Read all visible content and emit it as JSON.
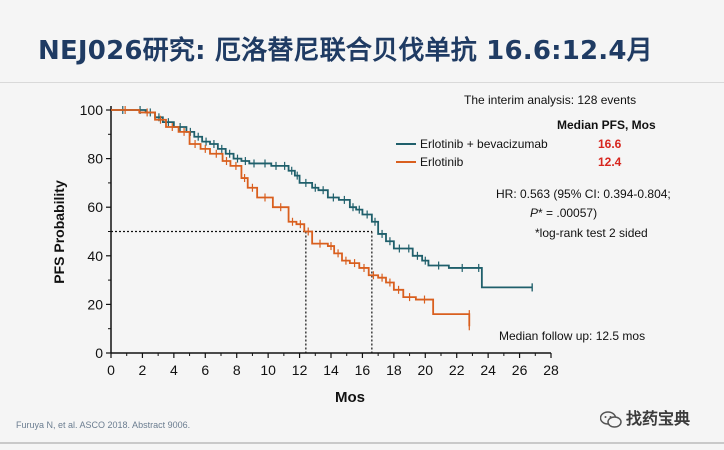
{
  "slide": {
    "title": "NEJ026研究: 厄洛替尼联合贝伐单抗 16.6:12.4月",
    "citation": "Furuya N, et al. ASCO 2018. Abstract 9006.",
    "watermark": "找药宝典",
    "watermark_icon": "wechat-icon"
  },
  "chart_data": {
    "type": "line",
    "subtype": "kaplan-meier",
    "title": "",
    "xlabel": "Mos",
    "ylabel": "PFS Probability",
    "xlim": [
      0,
      28
    ],
    "ylim": [
      0,
      100
    ],
    "xticks": [
      0,
      2,
      4,
      6,
      8,
      10,
      12,
      14,
      16,
      18,
      20,
      22,
      24,
      26,
      28
    ],
    "yticks": [
      0,
      20,
      40,
      60,
      80,
      100
    ],
    "grid": false,
    "legend_position": "top-right",
    "legend_header": "Median PFS, Mos",
    "series": [
      {
        "name": "Erlotinib + bevacizumab",
        "color": "#1f5f6b",
        "median_label": "16.6",
        "x": [
          0,
          1.5,
          2.2,
          2.8,
          3.3,
          4.0,
          4.8,
          5.3,
          5.8,
          6.3,
          6.8,
          7.3,
          7.8,
          8.3,
          8.8,
          9.4,
          10.2,
          10.8,
          11.3,
          11.7,
          12.0,
          12.8,
          13.2,
          13.8,
          14.5,
          15.2,
          15.6,
          16.0,
          16.6,
          17.0,
          17.5,
          18.0,
          18.7,
          19.2,
          19.8,
          20.2,
          21.5,
          23.2,
          23.6,
          26.8
        ],
        "y": [
          100,
          100,
          99,
          97,
          95,
          93,
          91,
          89,
          87,
          86,
          84,
          82,
          80,
          79,
          78,
          78,
          77,
          77,
          75,
          73,
          70,
          68,
          67,
          64,
          63,
          60,
          59,
          57,
          54,
          49,
          46,
          43,
          43,
          40,
          38,
          36,
          35,
          35,
          27,
          27
        ]
      },
      {
        "name": "Erlotinib",
        "color": "#d95f1e",
        "median_label": "12.4",
        "x": [
          0,
          1.8,
          2.8,
          3.5,
          4.3,
          5.0,
          5.7,
          6.3,
          7.1,
          7.6,
          8.3,
          8.7,
          9.3,
          10.3,
          11.3,
          11.8,
          12.3,
          12.8,
          13.8,
          14.2,
          14.7,
          15.2,
          15.8,
          16.4,
          17.0,
          17.5,
          18.0,
          18.6,
          19.4,
          20.5,
          22.8
        ],
        "y": [
          100,
          99,
          96,
          93,
          91,
          86,
          84,
          82,
          79,
          77,
          72,
          68,
          64,
          60,
          54,
          53,
          50,
          45,
          44,
          41,
          38,
          37,
          35,
          32,
          31,
          29,
          26,
          23,
          22,
          16,
          11
        ]
      }
    ],
    "median_line_y": 50,
    "median_x": [
      12.4,
      16.6
    ],
    "annotations": {
      "interim": "The interim analysis: 128 events",
      "hr": "HR: 0.563 (95% CI: 0.394-0.804;",
      "p_star": "P",
      "p_value": "* = .00057)",
      "logrank": "*log-rank test 2 sided",
      "followup": "Median follow up: 12.5 mos"
    }
  }
}
